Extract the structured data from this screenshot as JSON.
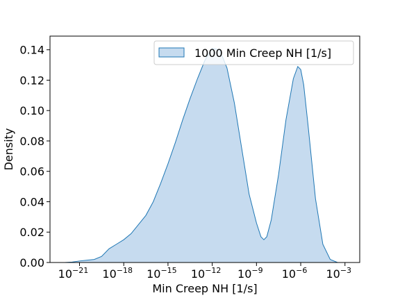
{
  "chart_data": {
    "type": "area",
    "xlabel": "Min Creep NH [1/s]",
    "ylabel": "Density",
    "x_scale": "log10",
    "xlim_exponent": [
      -23,
      -2
    ],
    "ylim": [
      0,
      0.149
    ],
    "x_tick_labels": [
      {
        "base": "10",
        "exp": "−21",
        "value": -21
      },
      {
        "base": "10",
        "exp": "−18",
        "value": -18
      },
      {
        "base": "10",
        "exp": "−15",
        "value": -15
      },
      {
        "base": "10",
        "exp": "−12",
        "value": -12
      },
      {
        "base": "10",
        "exp": "−9",
        "value": -9
      },
      {
        "base": "10",
        "exp": "−6",
        "value": -6
      },
      {
        "base": "10",
        "exp": "−3",
        "value": -3
      }
    ],
    "y_ticks": [
      0.0,
      0.02,
      0.04,
      0.06,
      0.08,
      0.1,
      0.12,
      0.14
    ],
    "y_tick_labels": [
      "0.00",
      "0.02",
      "0.04",
      "0.06",
      "0.08",
      "0.10",
      "0.12",
      "0.14"
    ],
    "series": [
      {
        "name": "1000 Min Creep NH [1/s]",
        "color": "#1f77b4",
        "fill": "#c6dbef",
        "x_log10": [
          -22.0,
          -21.5,
          -21.0,
          -20.0,
          -19.5,
          -19.0,
          -18.5,
          -18.0,
          -17.5,
          -17.0,
          -16.5,
          -16.0,
          -15.5,
          -15.0,
          -14.5,
          -14.0,
          -13.5,
          -13.0,
          -12.5,
          -12.0,
          -11.5,
          -11.0,
          -10.5,
          -10.0,
          -9.5,
          -9.0,
          -8.7,
          -8.5,
          -8.3,
          -8.0,
          -7.5,
          -7.0,
          -6.5,
          -6.2,
          -6.0,
          -5.8,
          -5.5,
          -5.0,
          -4.5,
          -4.0,
          -3.5
        ],
        "density": [
          0.0,
          0.0003,
          0.001,
          0.002,
          0.004,
          0.009,
          0.012,
          0.015,
          0.019,
          0.025,
          0.031,
          0.04,
          0.052,
          0.065,
          0.079,
          0.094,
          0.108,
          0.121,
          0.133,
          0.141,
          0.14,
          0.128,
          0.105,
          0.075,
          0.045,
          0.026,
          0.017,
          0.015,
          0.017,
          0.028,
          0.058,
          0.094,
          0.121,
          0.129,
          0.127,
          0.117,
          0.09,
          0.042,
          0.012,
          0.002,
          0.0
        ]
      }
    ],
    "legend": {
      "position": "top-right",
      "entries": [
        "1000 Min Creep NH [1/s]"
      ]
    },
    "grid": false
  }
}
